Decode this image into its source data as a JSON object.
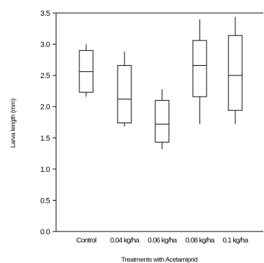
{
  "chart_data": {
    "type": "box",
    "xlabel": "Treatments with Acetamiprid",
    "ylabel": "Larva length (mm)",
    "ylim": [
      0,
      35
    ],
    "y_ticks": [
      {
        "value": 0,
        "label": "0.0"
      },
      {
        "value": 5,
        "label": "0.5"
      },
      {
        "value": 10,
        "label": "1.0"
      },
      {
        "value": 15,
        "label": "1.5"
      },
      {
        "value": 20,
        "label": "2.0"
      },
      {
        "value": 25,
        "label": "2.5"
      },
      {
        "value": 30,
        "label": "3.0"
      },
      {
        "value": 35,
        "label": "3.5"
      }
    ],
    "categories": [
      "Control",
      "0.04 kg/ha",
      "0.06 kg/ha",
      "0.08 kg/ha",
      "0.1 kg/ha"
    ],
    "boxes": [
      {
        "min": 21.6,
        "q1": 22.3,
        "median": 25.6,
        "q3": 29.0,
        "max": 30.0
      },
      {
        "min": 16.8,
        "q1": 17.4,
        "median": 21.2,
        "q3": 26.6,
        "max": 28.8
      },
      {
        "min": 13.2,
        "q1": 14.3,
        "median": 17.2,
        "q3": 21.0,
        "max": 22.8
      },
      {
        "min": 17.2,
        "q1": 21.6,
        "median": 26.6,
        "q3": 30.6,
        "max": 34.0
      },
      {
        "min": 17.2,
        "q1": 19.4,
        "median": 25.0,
        "q3": 31.4,
        "max": 34.4
      }
    ],
    "grid": false
  }
}
